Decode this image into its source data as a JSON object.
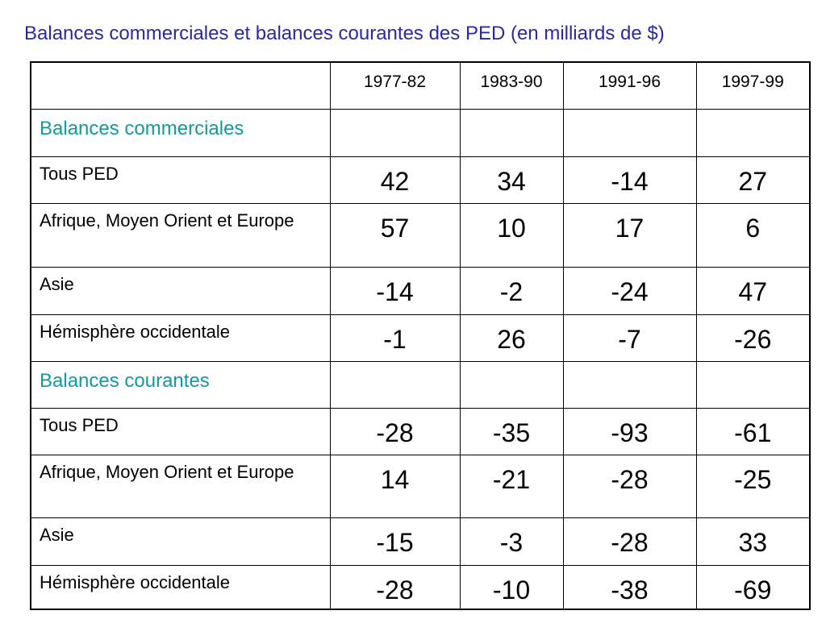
{
  "title": "Balances commerciales et balances courantes des PED (en milliards de $)",
  "table": {
    "columns": [
      "1977-82",
      "1983-90",
      "1991-96",
      "1997-99"
    ],
    "rows": [
      {
        "section": "Balances commerciales"
      },
      {
        "label": "Tous PED",
        "values": [
          42,
          34,
          -14,
          27
        ]
      },
      {
        "label": "Afrique, Moyen Orient et Europe",
        "values": [
          57,
          10,
          17,
          6
        ]
      },
      {
        "label": "Asie",
        "values": [
          -14,
          -2,
          -24,
          47
        ]
      },
      {
        "label": "Hémisphère occidentale",
        "values": [
          -1,
          26,
          -7,
          -26
        ]
      },
      {
        "section": "Balances courantes"
      },
      {
        "label": "Tous PED",
        "values": [
          -28,
          -35,
          -93,
          -61
        ]
      },
      {
        "label": "Afrique, Moyen Orient et Europe",
        "values": [
          14,
          -21,
          -28,
          -25
        ]
      },
      {
        "label": "Asie",
        "values": [
          -15,
          -3,
          -28,
          33
        ]
      },
      {
        "label": "Hémisphère occidentale",
        "values": [
          -28,
          -10,
          -38,
          -69
        ]
      }
    ]
  }
}
